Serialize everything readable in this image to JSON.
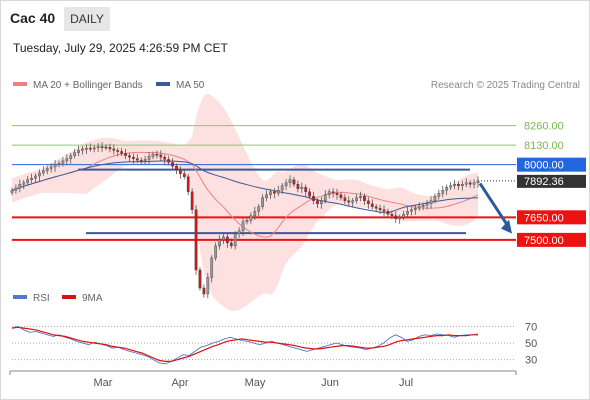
{
  "header": {
    "instrument": "Cac 40",
    "timeframe": "DAILY",
    "timestamp": "Tuesday, July 29, 2025 4:26:59 PM CET",
    "credit": "Research © 2025 Trading Central"
  },
  "legend": {
    "ma20": {
      "label": "MA 20 + Bollinger Bands",
      "color": "#f08080"
    },
    "ma50": {
      "label": "MA 50",
      "color": "#3a5a99"
    }
  },
  "rsi_legend": {
    "rsi": {
      "label": "RSI",
      "color": "#5577cc"
    },
    "ma9": {
      "label": "9MA",
      "color": "#dd1111"
    }
  },
  "colors": {
    "support": "#ee1111",
    "resistance": "#2266dd",
    "target": "#88cc66",
    "pivot": "#3a5a99",
    "up_candle": "#999999",
    "down_candle": "#cc1a1a",
    "band_fill": "#fcd6d6",
    "price_tag": "#333333"
  },
  "chart_data": [
    {
      "type": "candlestick",
      "title": "",
      "x_labels": [
        "Mar",
        "Apr",
        "May",
        "Jun",
        "Jul"
      ],
      "ylim": [
        7200,
        8430
      ],
      "levels": [
        {
          "value": 8260.0,
          "label": "8260.00",
          "role": "target",
          "style": "thin"
        },
        {
          "value": 8130.0,
          "label": "8130.00",
          "role": "target",
          "style": "thin"
        },
        {
          "value": 8000.0,
          "label": "8000.00",
          "role": "resistance",
          "style": "thin-long"
        },
        {
          "value": 7650.0,
          "label": "7650.00",
          "role": "support",
          "style": "thick"
        },
        {
          "value": 7500.0,
          "label": "7500.00",
          "role": "support",
          "style": "thick"
        }
      ],
      "pivot": {
        "value": 7545,
        "start_month": "Mar"
      },
      "last_price": {
        "value": 7892.36,
        "label": "7892.36"
      },
      "forecast_direction": "down",
      "close": [
        7830,
        7845,
        7870,
        7880,
        7900,
        7910,
        7925,
        7945,
        7960,
        7975,
        7985,
        8000,
        8010,
        8025,
        8040,
        8060,
        8080,
        8095,
        8105,
        8110,
        8105,
        8112,
        8120,
        8118,
        8115,
        8105,
        8095,
        8088,
        8075,
        8060,
        8050,
        8040,
        8030,
        8025,
        8035,
        8055,
        8070,
        8065,
        8050,
        8035,
        8015,
        7990,
        7965,
        7940,
        7920,
        7820,
        7700,
        7300,
        7180,
        7140,
        7250,
        7380,
        7460,
        7500,
        7520,
        7480,
        7460,
        7540,
        7560,
        7620,
        7630,
        7660,
        7690,
        7720,
        7780,
        7800,
        7820,
        7810,
        7830,
        7860,
        7880,
        7900,
        7870,
        7840,
        7850,
        7820,
        7790,
        7760,
        7740,
        7760,
        7800,
        7820,
        7810,
        7800,
        7780,
        7760,
        7750,
        7760,
        7780,
        7790,
        7760,
        7740,
        7720,
        7710,
        7700,
        7690,
        7670,
        7660,
        7640,
        7650,
        7670,
        7690,
        7700,
        7710,
        7720,
        7730,
        7740,
        7760,
        7790,
        7810,
        7830,
        7850,
        7860,
        7870,
        7860,
        7870,
        7880,
        7870,
        7880,
        7892.36
      ]
    },
    {
      "type": "line",
      "title": "RSI",
      "ylim": [
        20,
        85
      ],
      "ticks": [
        70,
        50,
        30
      ],
      "tick_labels": [
        "70",
        "50",
        "30"
      ],
      "series": [
        {
          "name": "RSI",
          "values": [
            68,
            70,
            66,
            63,
            64,
            62,
            60,
            58,
            60,
            57,
            55,
            52,
            50,
            48,
            51,
            49,
            47,
            44,
            45,
            42,
            40,
            38,
            36,
            34,
            30,
            26,
            25,
            28,
            32,
            36,
            35,
            40,
            45,
            47,
            50,
            52,
            55,
            57,
            55,
            53,
            52,
            50,
            48,
            50,
            52,
            50,
            48,
            46,
            44,
            42,
            40,
            42,
            44,
            46,
            48,
            50,
            48,
            46,
            45,
            44,
            42,
            44,
            46,
            50,
            56,
            60,
            57,
            52,
            54,
            58,
            60,
            59,
            61,
            60,
            59,
            57,
            59,
            60,
            60,
            61
          ]
        },
        {
          "name": "9MA",
          "values": [
            68,
            69,
            68,
            67,
            66,
            64,
            62,
            60,
            59,
            58,
            56,
            54,
            52,
            51,
            50,
            49,
            48,
            46,
            45,
            44,
            42,
            40,
            38,
            35,
            32,
            29,
            28,
            28,
            30,
            32,
            34,
            37,
            40,
            43,
            46,
            48,
            51,
            53,
            54,
            55,
            54,
            53,
            52,
            51,
            51,
            50,
            49,
            48,
            47,
            45,
            44,
            43,
            43,
            44,
            45,
            46,
            47,
            47,
            46,
            45,
            44,
            44,
            45,
            46,
            48,
            51,
            53,
            54,
            55,
            56,
            57,
            58,
            59,
            59,
            60,
            59,
            59,
            59,
            60,
            60
          ]
        }
      ]
    }
  ]
}
